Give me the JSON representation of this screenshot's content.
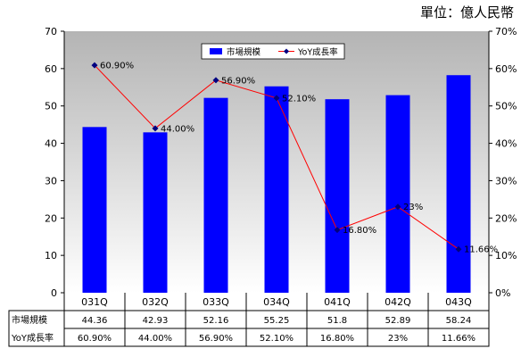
{
  "unit_label": "單位：億人民幣",
  "chart_data": {
    "type": "bar+line",
    "categories": [
      "031Q",
      "032Q",
      "033Q",
      "034Q",
      "041Q",
      "042Q",
      "043Q"
    ],
    "series": [
      {
        "name": "市場規模",
        "type": "bar",
        "axis": "left",
        "color": "#0000ff",
        "values": [
          44.36,
          42.93,
          52.16,
          55.25,
          51.8,
          52.89,
          58.24
        ]
      },
      {
        "name": "YoY成長率",
        "type": "line",
        "axis": "right",
        "color": "#ff0000",
        "marker_color": "#000080",
        "values": [
          60.9,
          44.0,
          56.9,
          52.1,
          16.8,
          23,
          11.66
        ],
        "labels": [
          "60.90%",
          "44.00%",
          "56.90%",
          "52.10%",
          "16.80%",
          "23%",
          "11.66%"
        ]
      }
    ],
    "y_left": {
      "min": 0,
      "max": 70,
      "ticks": [
        "0",
        "10",
        "20",
        "30",
        "40",
        "50",
        "60",
        "70"
      ]
    },
    "y_right": {
      "min": 0,
      "max": 70,
      "ticks": [
        "0%",
        "10%",
        "20%",
        "30%",
        "40%",
        "50%",
        "60%",
        "70%"
      ]
    },
    "legend": {
      "position": "top-center",
      "items": [
        "市場規模",
        "YoY成長率"
      ]
    },
    "plot_background": "gradient gray",
    "data_table": {
      "rows": [
        {
          "label": "市場規模",
          "values": [
            "44.36",
            "42.93",
            "52.16",
            "55.25",
            "51.8",
            "52.89",
            "58.24"
          ]
        },
        {
          "label": "YoY成長率",
          "values": [
            "60.90%",
            "44.00%",
            "56.90%",
            "52.10%",
            "16.80%",
            "23%",
            "11.66%"
          ]
        }
      ]
    }
  }
}
